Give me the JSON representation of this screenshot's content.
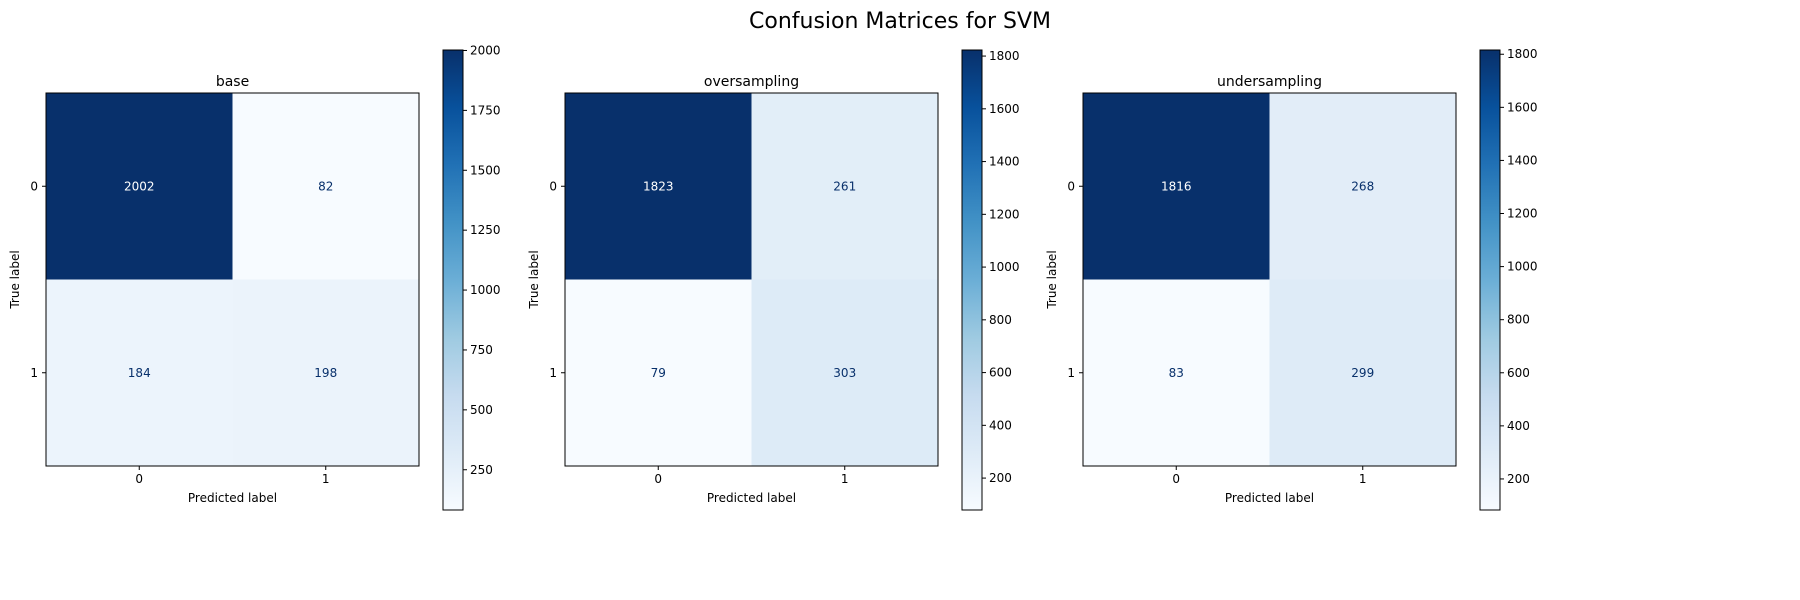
{
  "figure_title": "Confusion Matrices for SVM",
  "colormap": {
    "name": "Blues",
    "low": "#f7fbff",
    "high": "#08306b",
    "text_on_dark": "#ffffff",
    "text_on_light": "#08306b"
  },
  "chart_data": [
    {
      "type": "heatmap",
      "title": "base",
      "xlabel": "Predicted label",
      "ylabel": "True label",
      "x_ticks": [
        "0",
        "1"
      ],
      "y_ticks": [
        "0",
        "1"
      ],
      "matrix": [
        [
          2002,
          82
        ],
        [
          184,
          198
        ]
      ],
      "colorbar": {
        "range": [
          82,
          2002
        ],
        "ticks": [
          250,
          500,
          750,
          1000,
          1250,
          1500,
          1750,
          2000
        ]
      }
    },
    {
      "type": "heatmap",
      "title": "oversampling",
      "xlabel": "Predicted label",
      "ylabel": "True label",
      "x_ticks": [
        "0",
        "1"
      ],
      "y_ticks": [
        "0",
        "1"
      ],
      "matrix": [
        [
          1823,
          261
        ],
        [
          79,
          303
        ]
      ],
      "colorbar": {
        "range": [
          79,
          1823
        ],
        "ticks": [
          200,
          400,
          600,
          800,
          1000,
          1200,
          1400,
          1600,
          1800
        ]
      }
    },
    {
      "type": "heatmap",
      "title": "undersampling",
      "xlabel": "Predicted label",
      "ylabel": "True label",
      "x_ticks": [
        "0",
        "1"
      ],
      "y_ticks": [
        "0",
        "1"
      ],
      "matrix": [
        [
          1816,
          268
        ],
        [
          83,
          299
        ]
      ],
      "colorbar": {
        "range": [
          83,
          1816
        ],
        "ticks": [
          200,
          400,
          600,
          800,
          1000,
          1200,
          1400,
          1600,
          1800
        ]
      }
    }
  ]
}
